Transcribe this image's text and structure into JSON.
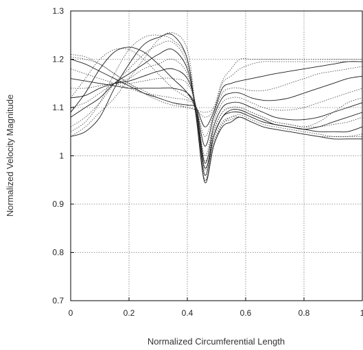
{
  "chart_data": {
    "type": "line",
    "title": "",
    "xlabel": "Normalized Circumferential Length",
    "ylabel": "Normalized Velocity Magnitude",
    "xlim": [
      0,
      1
    ],
    "ylim": [
      0.7,
      1.3
    ],
    "grid": true,
    "legend": "none",
    "x_ticks": [
      "0",
      "0.2",
      "0.4",
      "0.6",
      "0.8",
      "1"
    ],
    "y_ticks": [
      "0.7",
      "0.8",
      "0.9",
      "1",
      "1.1",
      "1.2",
      "1.3"
    ],
    "series_note_count": 26,
    "x": [
      0,
      0.05,
      0.1,
      0.15,
      0.2,
      0.25,
      0.3,
      0.35,
      0.4,
      0.43,
      0.46,
      0.49,
      0.52,
      0.55,
      0.58,
      0.62,
      0.66,
      0.7,
      0.75,
      0.8,
      0.85,
      0.9,
      0.95,
      1
    ],
    "series": [
      {
        "values": [
          1.04,
          1.05,
          1.08,
          1.14,
          1.19,
          1.23,
          1.245,
          1.25,
          1.2,
          1.08,
          0.945,
          1.02,
          1.06,
          1.07,
          1.08,
          1.07,
          1.06,
          1.055,
          1.05,
          1.045,
          1.04,
          1.035,
          1.035,
          1.035
        ],
        "style": "solid"
      },
      {
        "values": [
          1.06,
          1.08,
          1.11,
          1.15,
          1.18,
          1.21,
          1.23,
          1.235,
          1.19,
          1.08,
          0.95,
          1.03,
          1.07,
          1.08,
          1.085,
          1.075,
          1.065,
          1.06,
          1.055,
          1.05,
          1.045,
          1.04,
          1.04,
          1.045
        ],
        "style": "dotted"
      },
      {
        "values": [
          1.08,
          1.1,
          1.12,
          1.15,
          1.17,
          1.19,
          1.21,
          1.22,
          1.18,
          1.09,
          0.96,
          1.04,
          1.08,
          1.09,
          1.09,
          1.08,
          1.07,
          1.065,
          1.06,
          1.055,
          1.05,
          1.05,
          1.05,
          1.06
        ],
        "style": "solid"
      },
      {
        "values": [
          1.1,
          1.11,
          1.13,
          1.15,
          1.16,
          1.18,
          1.19,
          1.2,
          1.17,
          1.09,
          0.97,
          1.05,
          1.09,
          1.1,
          1.1,
          1.09,
          1.08,
          1.07,
          1.065,
          1.06,
          1.06,
          1.065,
          1.07,
          1.08
        ],
        "style": "dotted"
      },
      {
        "values": [
          1.12,
          1.125,
          1.14,
          1.15,
          1.155,
          1.165,
          1.175,
          1.18,
          1.16,
          1.1,
          0.985,
          1.06,
          1.1,
          1.11,
          1.11,
          1.1,
          1.09,
          1.08,
          1.075,
          1.075,
          1.08,
          1.09,
          1.1,
          1.11
        ],
        "style": "solid"
      },
      {
        "values": [
          1.14,
          1.14,
          1.145,
          1.15,
          1.15,
          1.155,
          1.16,
          1.16,
          1.15,
          1.1,
          1.0,
          1.07,
          1.11,
          1.12,
          1.12,
          1.11,
          1.1,
          1.095,
          1.095,
          1.1,
          1.11,
          1.12,
          1.13,
          1.14
        ],
        "style": "dotted"
      },
      {
        "values": [
          1.16,
          1.155,
          1.15,
          1.145,
          1.14,
          1.14,
          1.14,
          1.14,
          1.13,
          1.1,
          1.02,
          1.08,
          1.12,
          1.13,
          1.13,
          1.12,
          1.115,
          1.115,
          1.12,
          1.13,
          1.14,
          1.15,
          1.16,
          1.165
        ],
        "style": "solid"
      },
      {
        "values": [
          1.18,
          1.17,
          1.16,
          1.15,
          1.14,
          1.13,
          1.125,
          1.12,
          1.115,
          1.1,
          1.04,
          1.085,
          1.13,
          1.14,
          1.14,
          1.135,
          1.135,
          1.14,
          1.15,
          1.16,
          1.17,
          1.175,
          1.18,
          1.185
        ],
        "style": "dotted"
      },
      {
        "values": [
          1.2,
          1.19,
          1.175,
          1.16,
          1.145,
          1.13,
          1.12,
          1.11,
          1.105,
          1.1,
          1.06,
          1.09,
          1.14,
          1.15,
          1.155,
          1.16,
          1.165,
          1.17,
          1.175,
          1.18,
          1.185,
          1.19,
          1.195,
          1.195
        ],
        "style": "solid"
      },
      {
        "values": [
          1.21,
          1.205,
          1.19,
          1.17,
          1.15,
          1.135,
          1.12,
          1.11,
          1.1,
          1.095,
          1.08,
          1.095,
          1.15,
          1.165,
          1.18,
          1.19,
          1.195,
          1.195,
          1.195,
          1.195,
          1.195,
          1.195,
          1.195,
          1.195
        ],
        "style": "dotted"
      },
      {
        "values": [
          1.205,
          1.2,
          1.19,
          1.17,
          1.15,
          1.13,
          1.115,
          1.105,
          1.1,
          1.095,
          1.09,
          1.1,
          1.155,
          1.18,
          1.2,
          1.2,
          1.2,
          1.2,
          1.2,
          1.2,
          1.2,
          1.2,
          1.2,
          1.2
        ],
        "style": "dotted"
      },
      {
        "values": [
          1.12,
          1.16,
          1.2,
          1.22,
          1.22,
          1.2,
          1.17,
          1.14,
          1.12,
          1.1,
          0.99,
          1.05,
          1.09,
          1.1,
          1.1,
          1.09,
          1.08,
          1.07,
          1.065,
          1.06,
          1.07,
          1.09,
          1.11,
          1.12
        ],
        "style": "dotted"
      },
      {
        "values": [
          1.09,
          1.13,
          1.18,
          1.215,
          1.225,
          1.215,
          1.19,
          1.16,
          1.13,
          1.09,
          0.975,
          1.04,
          1.08,
          1.095,
          1.095,
          1.085,
          1.075,
          1.065,
          1.06,
          1.055,
          1.06,
          1.07,
          1.08,
          1.09
        ],
        "style": "solid"
      },
      {
        "values": [
          1.05,
          1.07,
          1.11,
          1.17,
          1.22,
          1.245,
          1.25,
          1.24,
          1.2,
          1.085,
          0.95,
          1.02,
          1.065,
          1.075,
          1.08,
          1.07,
          1.06,
          1.055,
          1.05,
          1.045,
          1.04,
          1.04,
          1.04,
          1.04
        ],
        "style": "dotted"
      },
      {
        "values": [
          1.04,
          1.06,
          1.09,
          1.12,
          1.16,
          1.2,
          1.24,
          1.255,
          1.22,
          1.09,
          0.95,
          1.025,
          1.065,
          1.08,
          1.08,
          1.07,
          1.06,
          1.055,
          1.05,
          1.045,
          1.04,
          1.035,
          1.035,
          1.035
        ],
        "style": "dotted"
      }
    ]
  }
}
